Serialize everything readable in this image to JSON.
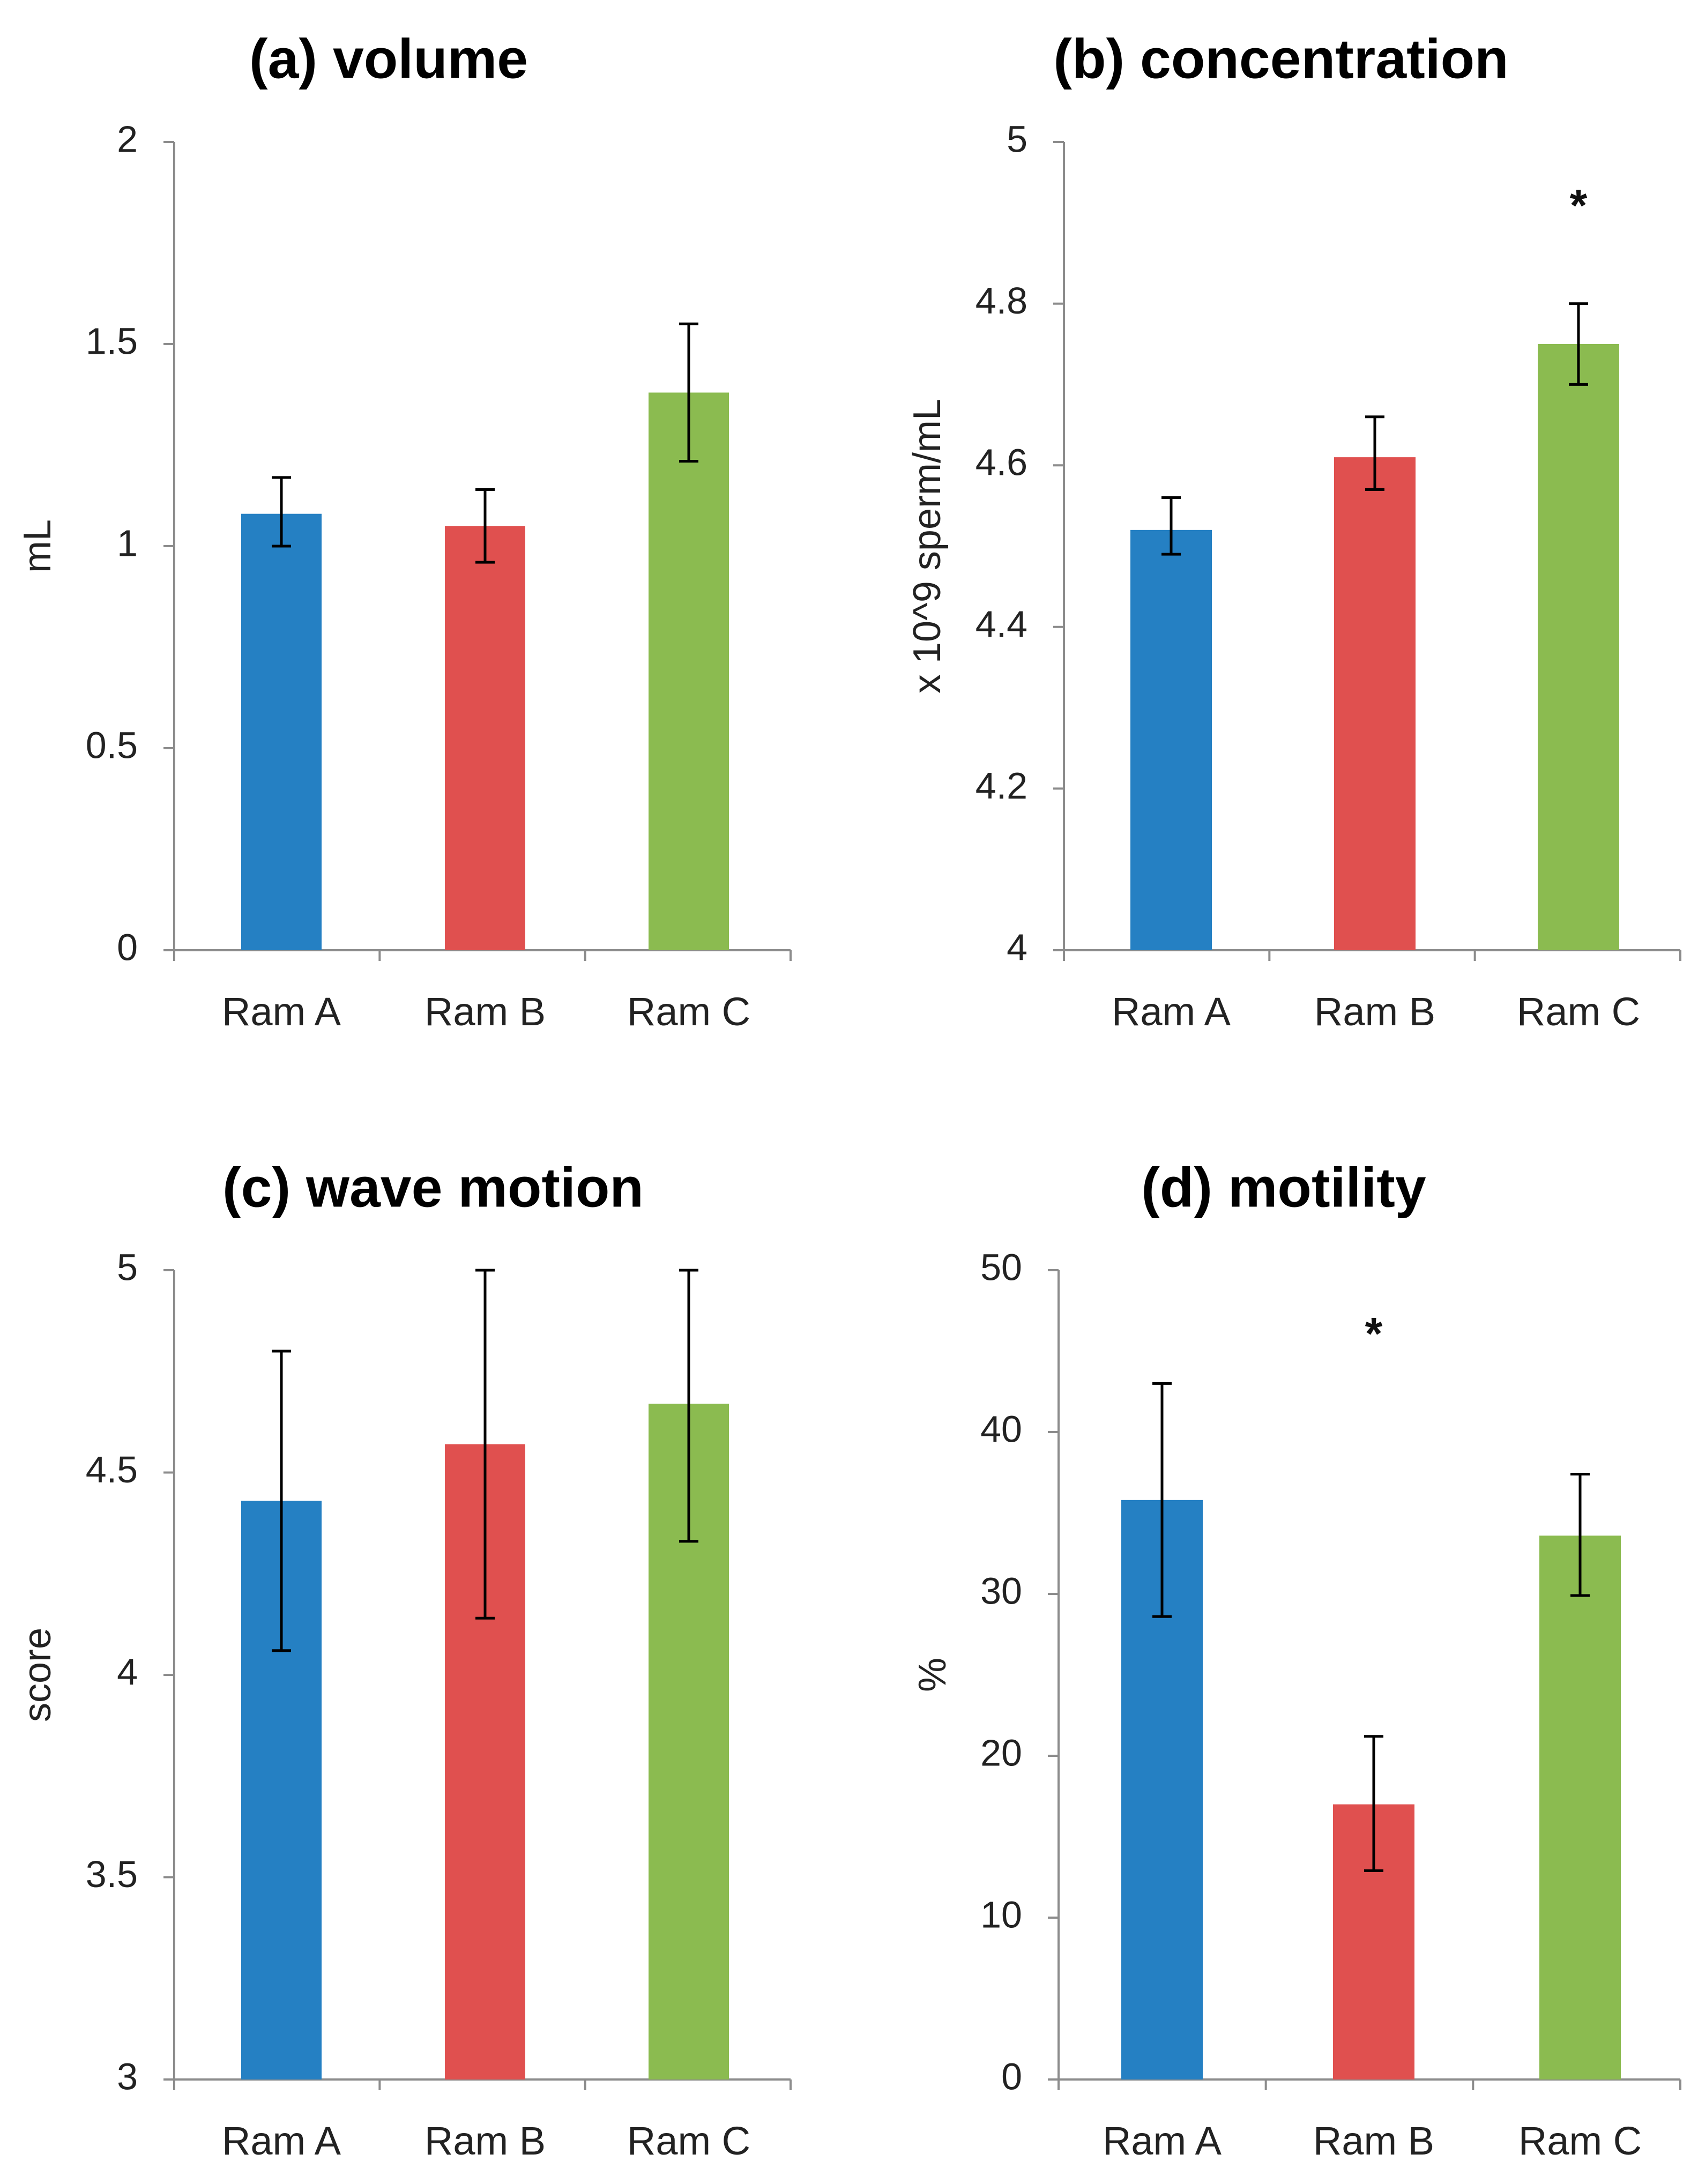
{
  "colors": {
    "Ram A": "#2580c3",
    "Ram B": "#e0504f",
    "Ram C": "#8bbb50"
  },
  "chart_data": [
    {
      "type": "bar",
      "title": "(a) volume",
      "categories": [
        "Ram A",
        "Ram B",
        "Ram C"
      ],
      "values": [
        1.08,
        1.05,
        1.38
      ],
      "errors": [
        [
          1.0,
          1.17
        ],
        [
          0.96,
          1.14
        ],
        [
          1.21,
          1.55
        ]
      ],
      "ylabel": "mL",
      "xlabel": "",
      "ylim": [
        0,
        2
      ],
      "yticks": [
        0,
        0.5,
        1,
        1.5,
        2
      ],
      "yticklabels": [
        "0",
        "0.5",
        "1",
        "1.5",
        "2"
      ],
      "significance": [],
      "grid": false
    },
    {
      "type": "bar",
      "title": "(b) concentration",
      "categories": [
        "Ram A",
        "Ram B",
        "Ram C"
      ],
      "values": [
        4.52,
        4.61,
        4.75
      ],
      "errors": [
        [
          4.49,
          4.56
        ],
        [
          4.57,
          4.66
        ],
        [
          4.7,
          4.8
        ]
      ],
      "ylabel": "x 10^9 sperm/mL",
      "xlabel": "",
      "ylim": [
        4,
        5
      ],
      "yticks": [
        4,
        4.2,
        4.4,
        4.6,
        4.8,
        5
      ],
      "yticklabels": [
        "4",
        "4.2",
        "4.4",
        "4.6",
        "4.8",
        "5"
      ],
      "significance": [
        {
          "category": "Ram C",
          "label": "*"
        }
      ],
      "grid": false
    },
    {
      "type": "bar",
      "title": "(c) wave motion",
      "categories": [
        "Ram A",
        "Ram B",
        "Ram C"
      ],
      "values": [
        4.43,
        4.57,
        4.67
      ],
      "errors": [
        [
          4.06,
          4.8
        ],
        [
          4.14,
          5.0
        ],
        [
          4.33,
          5.0
        ]
      ],
      "ylabel": "score",
      "xlabel": "",
      "ylim": [
        3,
        5
      ],
      "yticks": [
        3,
        3.5,
        4,
        4.5,
        5
      ],
      "yticklabels": [
        "3",
        "3.5",
        "4",
        "4.5",
        "5"
      ],
      "significance": [],
      "grid": false
    },
    {
      "type": "bar",
      "title": "(d) motility",
      "categories": [
        "Ram A",
        "Ram B",
        "Ram C"
      ],
      "values": [
        35.8,
        17.0,
        33.6
      ],
      "errors": [
        [
          28.6,
          43.0
        ],
        [
          12.9,
          21.2
        ],
        [
          29.9,
          37.4
        ]
      ],
      "ylabel": "%",
      "xlabel": "",
      "ylim": [
        0,
        50
      ],
      "yticks": [
        0,
        10,
        20,
        30,
        40,
        50
      ],
      "yticklabels": [
        "0",
        "10",
        "20",
        "30",
        "40",
        "50"
      ],
      "significance": [
        {
          "category": "Ram B",
          "label": "*"
        }
      ],
      "grid": false
    }
  ]
}
